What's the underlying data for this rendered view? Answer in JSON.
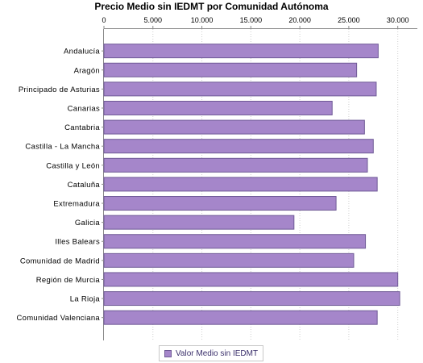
{
  "chart_data": {
    "type": "bar",
    "orientation": "horizontal",
    "title": "Precio Medio sin IEDMT por Comunidad Autónoma",
    "xlabel": "",
    "ylabel": "",
    "xlim": [
      0,
      32000
    ],
    "xticks": [
      0,
      5000,
      10000,
      15000,
      20000,
      25000,
      30000
    ],
    "xtick_labels": [
      "0",
      "5.000",
      "10.000",
      "15.000",
      "20.000",
      "25.000",
      "30.000"
    ],
    "xaxis_position": "top",
    "grid": "vertical dotted",
    "legend_position": "bottom-center",
    "categories": [
      "Andalucía",
      "Aragón",
      "Principado de Asturias",
      "Canarias",
      "Cantabria",
      "Castilla - La Mancha",
      "Castilla y León",
      "Cataluña",
      "Extremadura",
      "Galicia",
      "Illes Balears",
      "Comunidad de Madrid",
      "Región de Murcia",
      "La Rioja",
      "Comunidad Valenciana"
    ],
    "series": [
      {
        "name": "Valor Medio sin IEDMT",
        "color": "#a586ca",
        "values": [
          28000,
          25800,
          27800,
          23300,
          26600,
          27500,
          26900,
          27900,
          23700,
          19400,
          26700,
          25500,
          30000,
          30200,
          27900
        ]
      }
    ]
  }
}
